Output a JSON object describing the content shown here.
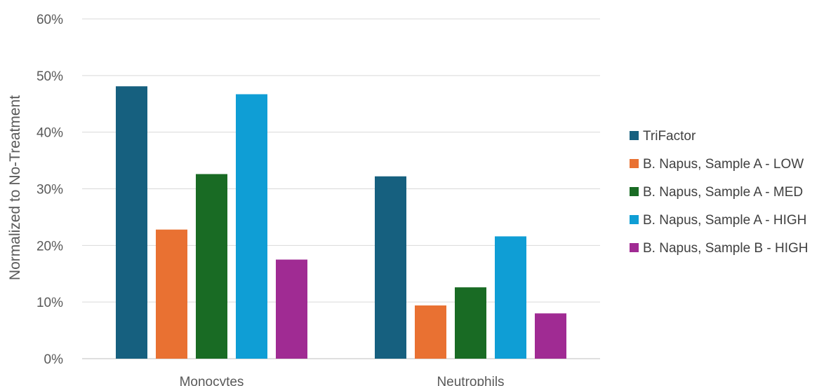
{
  "chart_data": {
    "type": "bar",
    "title": "",
    "xlabel": "",
    "ylabel": "Normalized to No-Treatment",
    "ylim": [
      0,
      0.6
    ],
    "yticks": [
      "0%",
      "10%",
      "20%",
      "30%",
      "40%",
      "50%",
      "60%"
    ],
    "grid": true,
    "legend_position": "right",
    "categories": [
      "Monocytes",
      "Neutrophils"
    ],
    "series": [
      {
        "name": "TriFactor",
        "color": "#16607f",
        "values": [
          0.481,
          0.322
        ]
      },
      {
        "name": "B. Napus, Sample A - LOW",
        "color": "#e97132",
        "values": [
          0.228,
          0.094
        ]
      },
      {
        "name": "B. Napus, Sample A - MED",
        "color": "#196b24",
        "values": [
          0.326,
          0.126
        ]
      },
      {
        "name": "B. Napus, Sample A - HIGH",
        "color": "#0f9ed5",
        "values": [
          0.467,
          0.216
        ]
      },
      {
        "name": "B. Napus, Sample B - HIGH",
        "color": "#a02b93",
        "values": [
          0.175,
          0.08
        ]
      }
    ]
  }
}
